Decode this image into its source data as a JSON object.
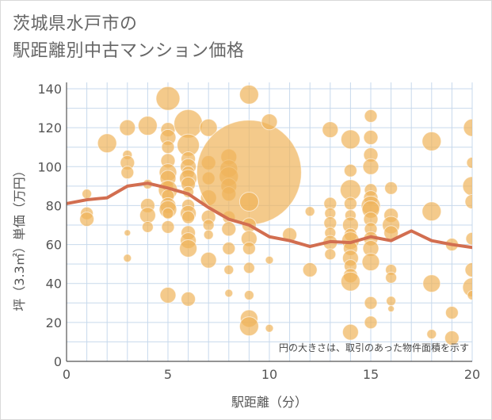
{
  "title": {
    "line1": "茨城県水戸市の",
    "line2": "駅距離別中古マンション価格"
  },
  "colors": {
    "bubble": "#f0b45a",
    "line": "#d26e50",
    "grid": "#c7d9ec",
    "axis": "#555555"
  },
  "chart_data": {
    "type": "scatter",
    "xlabel": "駅距離（分）",
    "ylabel": "坪（3.3㎡）単価（万円）",
    "xlim": [
      0,
      20
    ],
    "ylim": [
      0,
      140
    ],
    "xticks": [
      "0",
      "5",
      "10",
      "15",
      "20"
    ],
    "yticks": [
      "0",
      "20",
      "40",
      "60",
      "80",
      "100",
      "120",
      "140"
    ],
    "grid": true,
    "annotation": "円の大きさは、取引のあった物件面積を示す",
    "series": [
      {
        "kind": "bubble",
        "points": [
          {
            "x": 1,
            "y": 86,
            "s": 6
          },
          {
            "x": 1,
            "y": 76,
            "s": 8
          },
          {
            "x": 1,
            "y": 73,
            "s": 9
          },
          {
            "x": 2,
            "y": 112,
            "s": 12
          },
          {
            "x": 3,
            "y": 120,
            "s": 10
          },
          {
            "x": 3,
            "y": 106,
            "s": 6
          },
          {
            "x": 3,
            "y": 102,
            "s": 9
          },
          {
            "x": 3,
            "y": 97,
            "s": 8
          },
          {
            "x": 3,
            "y": 66,
            "s": 4
          },
          {
            "x": 3,
            "y": 53,
            "s": 5
          },
          {
            "x": 4,
            "y": 121,
            "s": 12
          },
          {
            "x": 4,
            "y": 91,
            "s": 6
          },
          {
            "x": 4,
            "y": 80,
            "s": 9
          },
          {
            "x": 4,
            "y": 75,
            "s": 10
          },
          {
            "x": 4,
            "y": 69,
            "s": 7
          },
          {
            "x": 5,
            "y": 135,
            "s": 15
          },
          {
            "x": 5,
            "y": 119,
            "s": 9
          },
          {
            "x": 5,
            "y": 115,
            "s": 10
          },
          {
            "x": 5,
            "y": 110,
            "s": 8
          },
          {
            "x": 5,
            "y": 103,
            "s": 9
          },
          {
            "x": 5,
            "y": 97,
            "s": 11
          },
          {
            "x": 5,
            "y": 94,
            "s": 10
          },
          {
            "x": 5,
            "y": 90,
            "s": 7
          },
          {
            "x": 5,
            "y": 88,
            "s": 12
          },
          {
            "x": 5,
            "y": 85,
            "s": 8
          },
          {
            "x": 5,
            "y": 80,
            "s": 10
          },
          {
            "x": 5,
            "y": 78,
            "s": 11
          },
          {
            "x": 5,
            "y": 76,
            "s": 7
          },
          {
            "x": 5,
            "y": 69,
            "s": 8
          },
          {
            "x": 5,
            "y": 34,
            "s": 10
          },
          {
            "x": 6,
            "y": 122,
            "s": 18
          },
          {
            "x": 6,
            "y": 111,
            "s": 14
          },
          {
            "x": 6,
            "y": 104,
            "s": 9
          },
          {
            "x": 6,
            "y": 100,
            "s": 10
          },
          {
            "x": 6,
            "y": 97,
            "s": 8
          },
          {
            "x": 6,
            "y": 94,
            "s": 11
          },
          {
            "x": 6,
            "y": 91,
            "s": 9
          },
          {
            "x": 6,
            "y": 87,
            "s": 7
          },
          {
            "x": 6,
            "y": 80,
            "s": 8
          },
          {
            "x": 6,
            "y": 76,
            "s": 10
          },
          {
            "x": 6,
            "y": 74,
            "s": 8
          },
          {
            "x": 6,
            "y": 66,
            "s": 9
          },
          {
            "x": 6,
            "y": 62,
            "s": 10
          },
          {
            "x": 6,
            "y": 58,
            "s": 11
          },
          {
            "x": 6,
            "y": 32,
            "s": 9
          },
          {
            "x": 7,
            "y": 120,
            "s": 11
          },
          {
            "x": 7,
            "y": 102,
            "s": 9
          },
          {
            "x": 7,
            "y": 94,
            "s": 8
          },
          {
            "x": 7,
            "y": 84,
            "s": 10
          },
          {
            "x": 7,
            "y": 74,
            "s": 9
          },
          {
            "x": 7,
            "y": 70,
            "s": 7
          },
          {
            "x": 7,
            "y": 65,
            "s": 6
          },
          {
            "x": 7,
            "y": 52,
            "s": 10
          },
          {
            "x": 8,
            "y": 105,
            "s": 10
          },
          {
            "x": 8,
            "y": 99,
            "s": 11
          },
          {
            "x": 8,
            "y": 95,
            "s": 12
          },
          {
            "x": 8,
            "y": 90,
            "s": 10
          },
          {
            "x": 8,
            "y": 86,
            "s": 9
          },
          {
            "x": 8,
            "y": 74,
            "s": 8
          },
          {
            "x": 8,
            "y": 68,
            "s": 9
          },
          {
            "x": 8,
            "y": 58,
            "s": 8
          },
          {
            "x": 8,
            "y": 47,
            "s": 6
          },
          {
            "x": 8,
            "y": 35,
            "s": 5
          },
          {
            "x": 9,
            "y": 137,
            "s": 12
          },
          {
            "x": 9,
            "y": 97,
            "s": 66
          },
          {
            "x": 9,
            "y": 82,
            "s": 12
          },
          {
            "x": 9,
            "y": 70,
            "s": 9
          },
          {
            "x": 9,
            "y": 63,
            "s": 10
          },
          {
            "x": 9,
            "y": 58,
            "s": 8
          },
          {
            "x": 9,
            "y": 48,
            "s": 7
          },
          {
            "x": 9,
            "y": 34,
            "s": 6
          },
          {
            "x": 9,
            "y": 22,
            "s": 11
          },
          {
            "x": 9,
            "y": 18,
            "s": 12
          },
          {
            "x": 10,
            "y": 123,
            "s": 10
          },
          {
            "x": 10,
            "y": 52,
            "s": 5
          },
          {
            "x": 10,
            "y": 17,
            "s": 5
          },
          {
            "x": 11,
            "y": 65,
            "s": 9
          },
          {
            "x": 12,
            "y": 77,
            "s": 6
          },
          {
            "x": 12,
            "y": 47,
            "s": 9
          },
          {
            "x": 13,
            "y": 119,
            "s": 10
          },
          {
            "x": 13,
            "y": 81,
            "s": 8
          },
          {
            "x": 13,
            "y": 76,
            "s": 7
          },
          {
            "x": 13,
            "y": 71,
            "s": 8
          },
          {
            "x": 13,
            "y": 66,
            "s": 7
          },
          {
            "x": 13,
            "y": 61,
            "s": 9
          },
          {
            "x": 13,
            "y": 55,
            "s": 7
          },
          {
            "x": 14,
            "y": 114,
            "s": 12
          },
          {
            "x": 14,
            "y": 98,
            "s": 8
          },
          {
            "x": 14,
            "y": 88,
            "s": 13
          },
          {
            "x": 14,
            "y": 81,
            "s": 8
          },
          {
            "x": 14,
            "y": 75,
            "s": 7
          },
          {
            "x": 14,
            "y": 70,
            "s": 10
          },
          {
            "x": 14,
            "y": 65,
            "s": 8
          },
          {
            "x": 14,
            "y": 62,
            "s": 11
          },
          {
            "x": 14,
            "y": 58,
            "s": 9
          },
          {
            "x": 14,
            "y": 53,
            "s": 10
          },
          {
            "x": 14,
            "y": 49,
            "s": 8
          },
          {
            "x": 14,
            "y": 44,
            "s": 9
          },
          {
            "x": 14,
            "y": 41,
            "s": 12
          },
          {
            "x": 14,
            "y": 15,
            "s": 10
          },
          {
            "x": 15,
            "y": 126,
            "s": 8
          },
          {
            "x": 15,
            "y": 115,
            "s": 9
          },
          {
            "x": 15,
            "y": 106,
            "s": 9
          },
          {
            "x": 15,
            "y": 100,
            "s": 10
          },
          {
            "x": 15,
            "y": 88,
            "s": 8
          },
          {
            "x": 15,
            "y": 84,
            "s": 9
          },
          {
            "x": 15,
            "y": 80,
            "s": 12
          },
          {
            "x": 15,
            "y": 78,
            "s": 11
          },
          {
            "x": 15,
            "y": 73,
            "s": 9
          },
          {
            "x": 15,
            "y": 68,
            "s": 8
          },
          {
            "x": 15,
            "y": 63,
            "s": 9
          },
          {
            "x": 15,
            "y": 58,
            "s": 10
          },
          {
            "x": 15,
            "y": 51,
            "s": 11
          },
          {
            "x": 15,
            "y": 30,
            "s": 8
          },
          {
            "x": 15,
            "y": 20,
            "s": 8
          },
          {
            "x": 16,
            "y": 89,
            "s": 8
          },
          {
            "x": 16,
            "y": 75,
            "s": 9
          },
          {
            "x": 16,
            "y": 70,
            "s": 11
          },
          {
            "x": 16,
            "y": 66,
            "s": 9
          },
          {
            "x": 16,
            "y": 47,
            "s": 7
          },
          {
            "x": 16,
            "y": 43,
            "s": 7
          },
          {
            "x": 16,
            "y": 31,
            "s": 6
          },
          {
            "x": 16,
            "y": 27,
            "s": 4
          },
          {
            "x": 18,
            "y": 113,
            "s": 12
          },
          {
            "x": 18,
            "y": 77,
            "s": 12
          },
          {
            "x": 18,
            "y": 40,
            "s": 11
          },
          {
            "x": 18,
            "y": 14,
            "s": 6
          },
          {
            "x": 19,
            "y": 60,
            "s": 8
          },
          {
            "x": 19,
            "y": 25,
            "s": 8
          },
          {
            "x": 19,
            "y": 12,
            "s": 9
          },
          {
            "x": 20,
            "y": 120,
            "s": 11
          },
          {
            "x": 20,
            "y": 102,
            "s": 7
          },
          {
            "x": 20,
            "y": 90,
            "s": 12
          },
          {
            "x": 20,
            "y": 82,
            "s": 9
          },
          {
            "x": 20,
            "y": 63,
            "s": 8
          },
          {
            "x": 20,
            "y": 47,
            "s": 9
          },
          {
            "x": 20,
            "y": 38,
            "s": 12
          },
          {
            "x": 20,
            "y": 34,
            "s": 6
          }
        ]
      },
      {
        "kind": "line",
        "x": [
          0,
          1,
          2,
          3,
          4,
          5,
          6,
          7,
          8,
          9,
          10,
          11,
          12,
          13,
          14,
          15,
          16,
          17,
          18,
          19,
          20
        ],
        "values": [
          81,
          83,
          84,
          90,
          91.5,
          89,
          86,
          79,
          73,
          70,
          64,
          62,
          59,
          61.5,
          61,
          64,
          62,
          67,
          62,
          60,
          58.5
        ]
      }
    ]
  }
}
